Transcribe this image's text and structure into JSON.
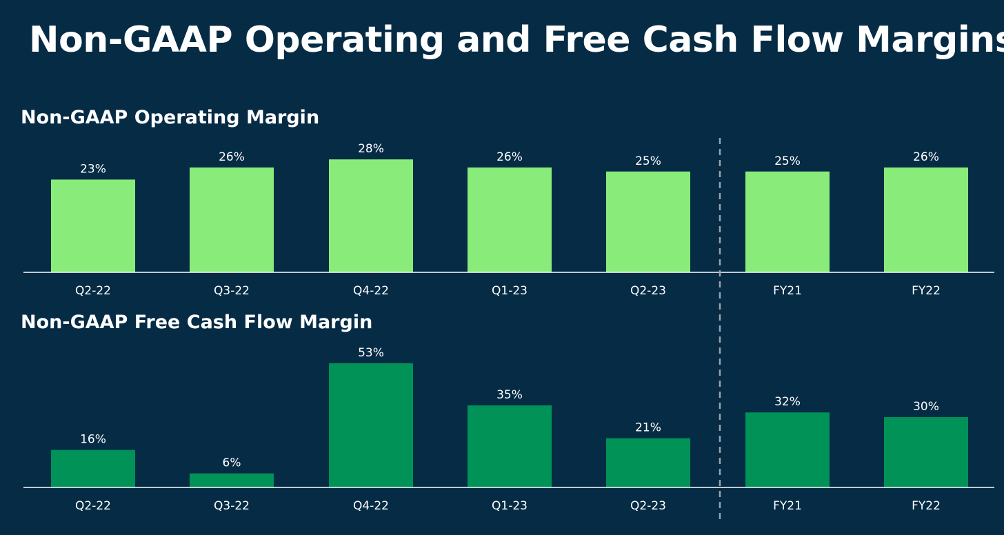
{
  "title": "Non-GAAP Operating and Free Cash Flow Margins",
  "colors": {
    "background": "#052b45",
    "operating_bar": "#89ec7a",
    "fcf_bar": "#009257",
    "axis": "#ffffff",
    "divider": "#9aa4ab"
  },
  "chart_data": [
    {
      "type": "bar",
      "title": "Non-GAAP Operating Margin",
      "categories": [
        "Q2-22",
        "Q3-22",
        "Q4-22",
        "Q1-23",
        "Q2-23",
        "FY21",
        "FY22"
      ],
      "values": [
        23,
        26,
        28,
        26,
        25,
        25,
        26
      ],
      "value_labels": [
        "23%",
        "26%",
        "28%",
        "26%",
        "25%",
        "25%",
        "26%"
      ],
      "unit": "%",
      "xlabel": "",
      "ylabel": "",
      "ylim": [
        0,
        30
      ],
      "grid": false,
      "divider_after_index": 4
    },
    {
      "type": "bar",
      "title": "Non-GAAP Free Cash Flow Margin",
      "categories": [
        "Q2-22",
        "Q3-22",
        "Q4-22",
        "Q1-23",
        "Q2-23",
        "FY21",
        "FY22"
      ],
      "values": [
        16,
        6,
        53,
        35,
        21,
        32,
        30
      ],
      "value_labels": [
        "16%",
        "6%",
        "53%",
        "35%",
        "21%",
        "32%",
        "30%"
      ],
      "unit": "%",
      "xlabel": "",
      "ylabel": "",
      "ylim": [
        0,
        60
      ],
      "grid": false,
      "divider_after_index": 4
    }
  ]
}
